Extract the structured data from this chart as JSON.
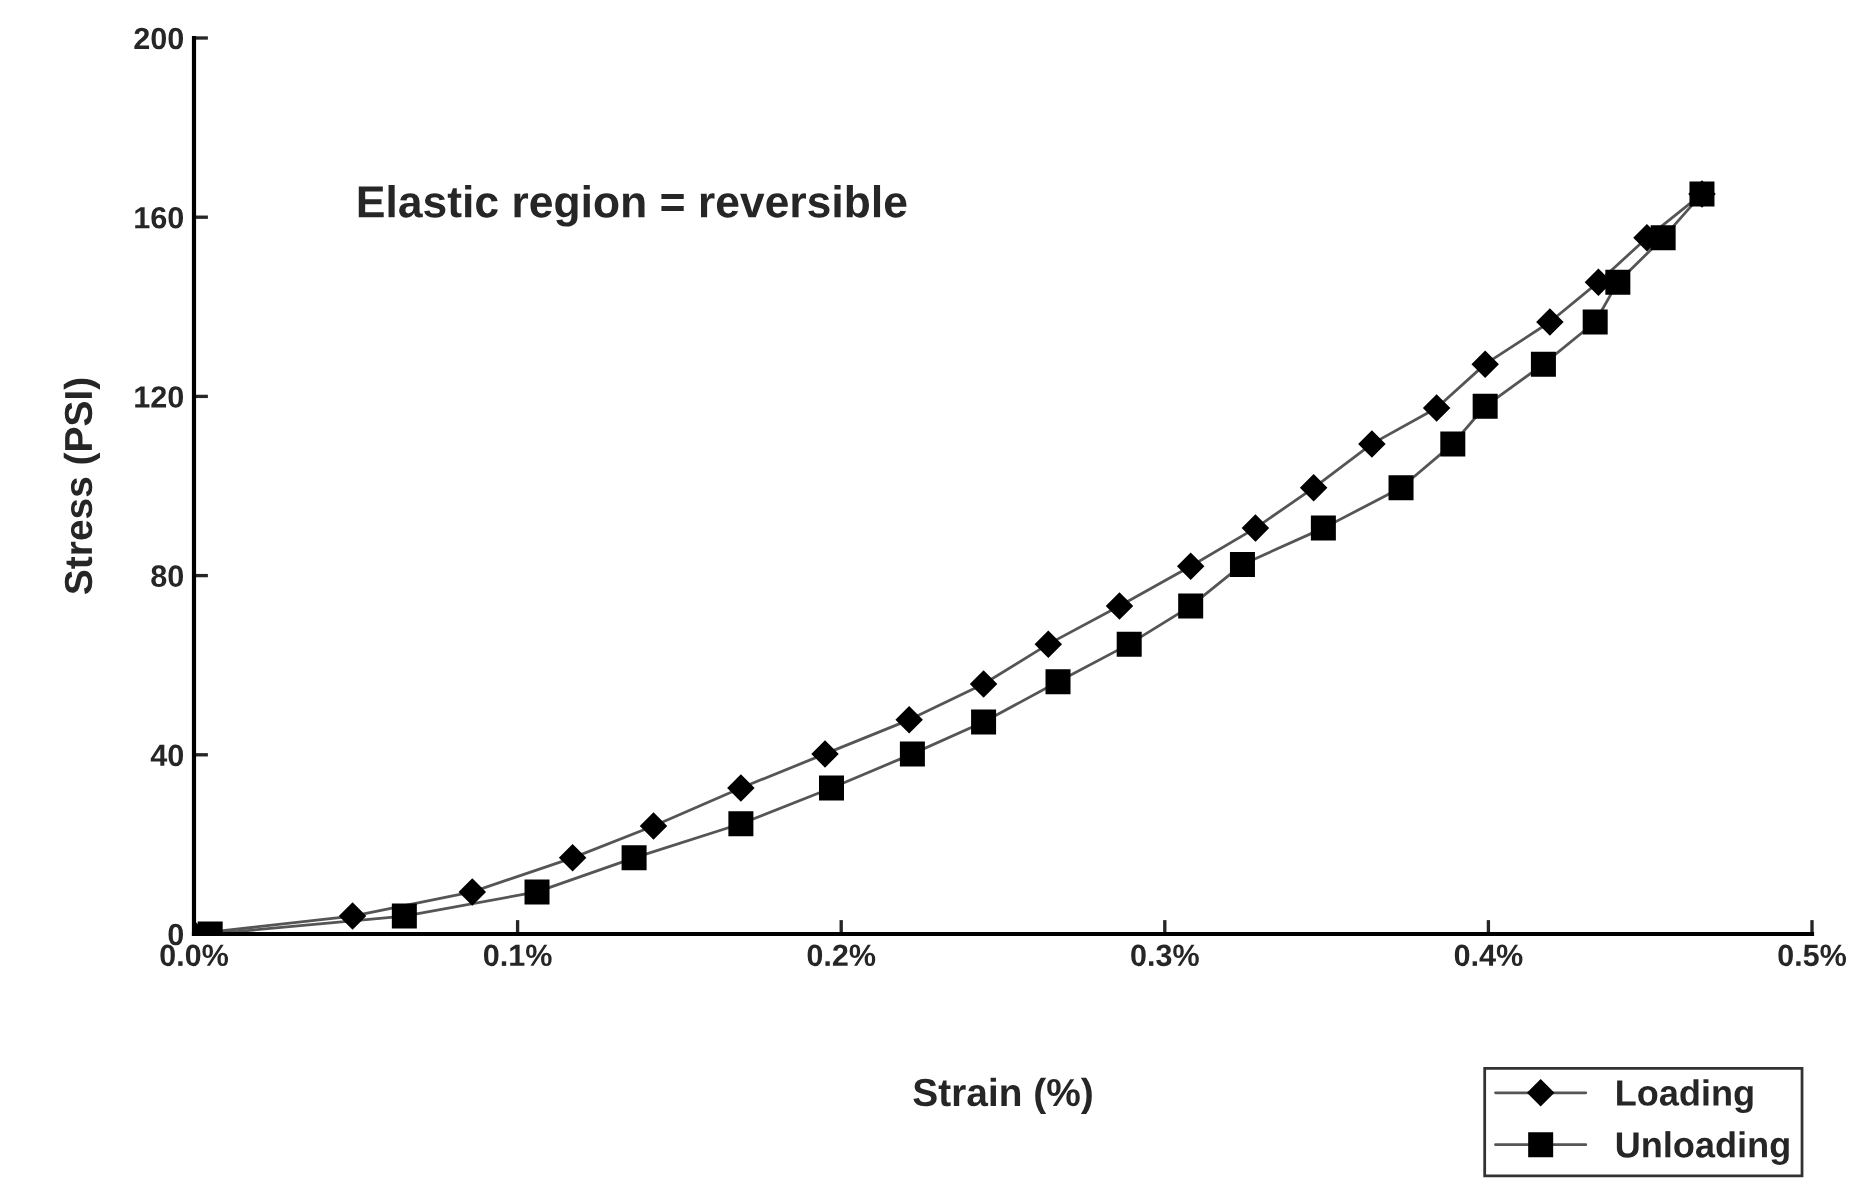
{
  "chart_data": {
    "type": "line",
    "xlabel": "Strain (%)",
    "ylabel": "Stress (PSI)",
    "annotations": [
      "Elastic region = reversible"
    ],
    "xlim": [
      0,
      0.5
    ],
    "ylim": [
      0,
      200
    ],
    "xticks": [
      {
        "value": 0,
        "label": "0.0%"
      },
      {
        "value": 0.1,
        "label": "0.1%"
      },
      {
        "value": 0.2,
        "label": "0.2%"
      },
      {
        "value": 0.3,
        "label": "0.3%"
      },
      {
        "value": 0.4,
        "label": "0.4%"
      },
      {
        "value": 0.5,
        "label": "0.5%"
      }
    ],
    "yticks": [
      0,
      40,
      80,
      120,
      160,
      200
    ],
    "grid": false,
    "legend": "bottom right",
    "line_style": "solid",
    "series": [
      {
        "name": "Loading",
        "color": "#000000",
        "marker": "diamond",
        "x": [
          0.0,
          0.049,
          0.086,
          0.117,
          0.142,
          0.169,
          0.195,
          0.221,
          0.244,
          0.264,
          0.286,
          0.308,
          0.328,
          0.346,
          0.364,
          0.384,
          0.399,
          0.419,
          0.434,
          0.449,
          0.466
        ],
        "values": [
          0,
          4.0,
          9.4,
          17.0,
          24.1,
          32.6,
          40.2,
          47.8,
          55.8,
          64.7,
          73.2,
          82.1,
          90.6,
          99.6,
          109.4,
          117.4,
          127.2,
          136.6,
          145.5,
          155.4,
          165.2
        ]
      },
      {
        "name": "Unloading",
        "color": "#000000",
        "marker": "square",
        "x": [
          0.005,
          0.065,
          0.106,
          0.136,
          0.169,
          0.197,
          0.222,
          0.244,
          0.267,
          0.289,
          0.308,
          0.324,
          0.349,
          0.373,
          0.389,
          0.399,
          0.417,
          0.433,
          0.44,
          0.454,
          0.466
        ],
        "values": [
          0,
          4.0,
          9.4,
          17.0,
          24.6,
          32.6,
          40.2,
          47.3,
          56.3,
          64.7,
          73.2,
          82.5,
          90.6,
          99.6,
          109.4,
          117.8,
          127.2,
          136.6,
          145.5,
          155.4,
          165.2
        ]
      }
    ]
  }
}
